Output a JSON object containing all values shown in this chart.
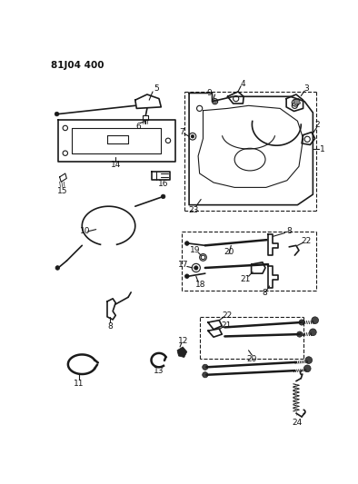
{
  "title": "81J04 400",
  "bg_color": "#ffffff",
  "line_color": "#1a1a1a",
  "label_color": "#111111",
  "fig_width": 3.94,
  "fig_height": 5.33,
  "dpi": 100
}
